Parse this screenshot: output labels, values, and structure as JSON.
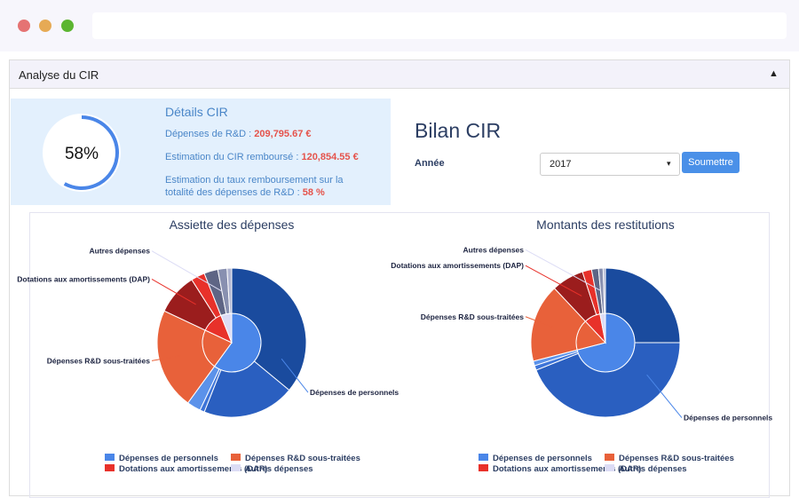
{
  "panel": {
    "title": "Analyse du CIR",
    "toggle": "▲"
  },
  "progress": {
    "value": 58,
    "label": "58%"
  },
  "details": {
    "title": "Détails CIR",
    "lines": [
      {
        "label": "Dépenses de R&D : ",
        "value": "209,795.67 €"
      },
      {
        "label": "Estimation du CIR remboursé : ",
        "value": "120,854.55 €"
      },
      {
        "label": "Estimation du taux remboursement sur la totalité des dépenses de R&D : ",
        "value": "58 %"
      }
    ]
  },
  "bilan": {
    "title": "Bilan CIR",
    "year_label": "Année",
    "year": "2017",
    "button": "Soumettre"
  },
  "chart_data": [
    {
      "type": "sunburst",
      "title": "Assiette des dépenses",
      "series": [
        {
          "name": "Dépenses de personnels",
          "color": "#4a86e8",
          "value": 60,
          "children": [
            36,
            20,
            1,
            3
          ],
          "child_colors": [
            "#1a4b9e",
            "#2a5fc0",
            "#3d74d8",
            "#5b92ea"
          ]
        },
        {
          "name": "Dépenses R&D sous-traitées",
          "color": "#e8613a",
          "value": 22,
          "children": [
            22
          ],
          "child_colors": [
            "#e8613a"
          ]
        },
        {
          "name": "Dotations aux amortissements (DAP)",
          "color": "#e8312a",
          "value": 12,
          "children": [
            9,
            3
          ],
          "child_colors": [
            "#9b1d1d",
            "#e8312a"
          ]
        },
        {
          "name": "Autres dépenses",
          "color": "#dcdcf5",
          "value": 6,
          "children": [
            3,
            2,
            1
          ],
          "child_colors": [
            "#5e6585",
            "#8890b0",
            "#b0b5d0"
          ]
        }
      ]
    },
    {
      "type": "sunburst",
      "title": "Montants des restitutions",
      "series": [
        {
          "name": "Dépenses de personnels",
          "color": "#4a86e8",
          "value": 71,
          "children": [
            25,
            44,
            1,
            1
          ],
          "child_colors": [
            "#1a4b9e",
            "#2a5fc0",
            "#3d74d8",
            "#5b92ea"
          ]
        },
        {
          "name": "Dépenses R&D sous-traitées",
          "color": "#e8613a",
          "value": 17,
          "children": [
            17
          ],
          "child_colors": [
            "#e8613a"
          ]
        },
        {
          "name": "Dotations aux amortissements (DAP)",
          "color": "#e8312a",
          "value": 9,
          "children": [
            7,
            2
          ],
          "child_colors": [
            "#9b1d1d",
            "#e8312a"
          ]
        },
        {
          "name": "Autres dépenses",
          "color": "#dcdcf5",
          "value": 3,
          "children": [
            1.5,
            1,
            0.5
          ],
          "child_colors": [
            "#5e6585",
            "#8890b0",
            "#b0b5d0"
          ]
        }
      ]
    }
  ]
}
